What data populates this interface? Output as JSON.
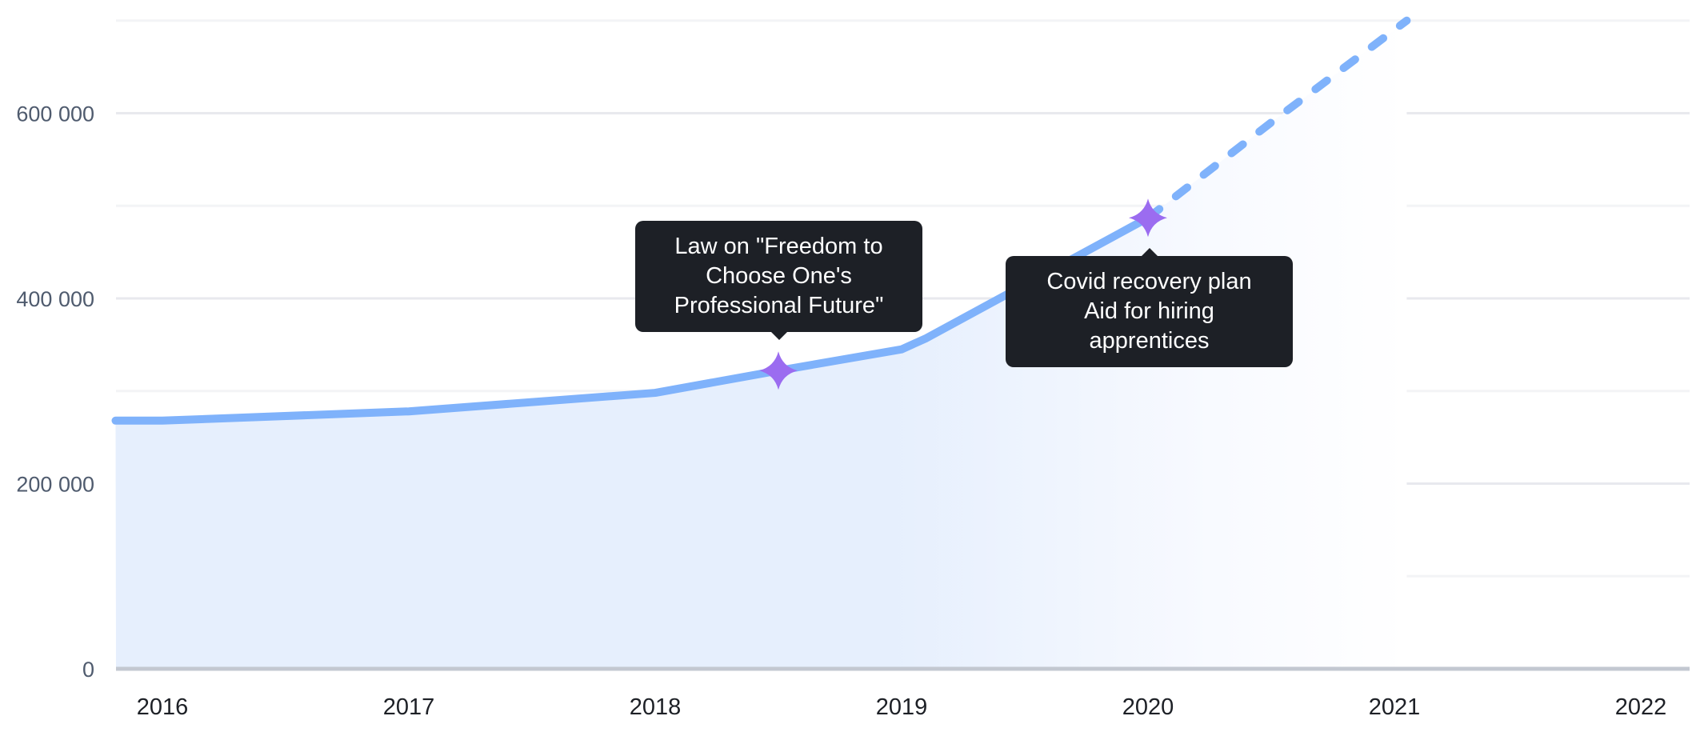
{
  "chart_data": {
    "type": "area",
    "title": "",
    "xlabel": "",
    "ylabel": "",
    "x_ticks": [
      "2016",
      "2017",
      "2018",
      "2019",
      "2020",
      "2021",
      "2022"
    ],
    "y_ticks": [
      {
        "value": 0,
        "label": "0"
      },
      {
        "value": 200000,
        "label": "200 000"
      },
      {
        "value": 400000,
        "label": "400 000"
      },
      {
        "value": 600000,
        "label": "600 000"
      }
    ],
    "ylim": [
      0,
      700000
    ],
    "xlim": [
      2015.81,
      2022.2
    ],
    "grid": true,
    "series": [
      {
        "name": "actual",
        "style": "solid",
        "x": [
          2015.81,
          2016,
          2017,
          2018,
          2018.5,
          2019,
          2019.1,
          2020
        ],
        "values": [
          268000,
          268000,
          278000,
          298000,
          322000,
          345000,
          357000,
          487000
        ]
      },
      {
        "name": "projection",
        "style": "dashed",
        "x": [
          2020,
          2020.5,
          2021.05
        ],
        "values": [
          487000,
          590000,
          700000
        ]
      }
    ],
    "annotations": [
      {
        "x": 2018.5,
        "value": 322000,
        "lines": [
          "Law on \"Freedom to",
          "Choose One's",
          "Professional Future\""
        ]
      },
      {
        "x": 2020,
        "value": 487000,
        "lines": [
          "Covid recovery plan",
          "Aid for hiring",
          "apprentices"
        ]
      }
    ],
    "colors": {
      "line": "#7fb2fb",
      "area": "#e6effd",
      "marker": "#9b6cf0",
      "tooltip": "#1d2026",
      "grid": "#ececf0",
      "baseline": "#c3c8d1"
    }
  }
}
